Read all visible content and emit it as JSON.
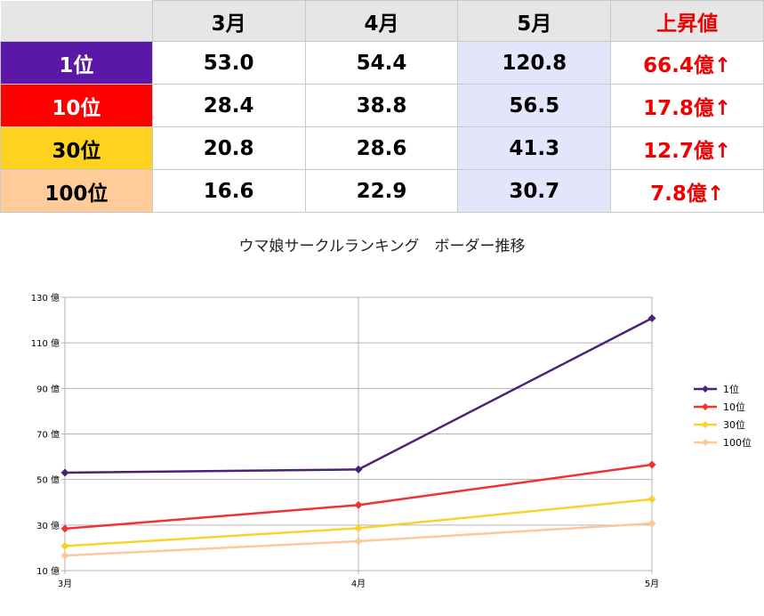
{
  "table": {
    "headers": [
      "3月",
      "4月",
      "5月",
      "上昇値"
    ],
    "rows": [
      {
        "label": "1位",
        "color": "#5a17a8",
        "text_color": "#ffffff",
        "values": [
          "53.0",
          "54.4",
          "120.8"
        ],
        "rise": "66.4億↑"
      },
      {
        "label": "10位",
        "color": "#ff0000",
        "text_color": "#ffffff",
        "values": [
          "28.4",
          "38.8",
          "56.5"
        ],
        "rise": "17.8億↑"
      },
      {
        "label": "30位",
        "color": "#ffd21f",
        "text_color": "#000000",
        "values": [
          "20.8",
          "28.6",
          "41.3"
        ],
        "rise": "12.7億↑"
      },
      {
        "label": "100位",
        "color": "#ffcc99",
        "text_color": "#000000",
        "values": [
          "16.6",
          "22.9",
          "30.7"
        ],
        "rise": "7.8億↑"
      }
    ]
  },
  "chart_data": {
    "type": "line",
    "title": "ウマ娘サークルランキング　ボーダー推移",
    "categories": [
      "3月",
      "4月",
      "5月"
    ],
    "y_ticks": [
      10,
      30,
      50,
      70,
      90,
      110,
      130
    ],
    "y_tick_labels": [
      "10 億",
      "30 億",
      "50 億",
      "70 億",
      "90 億",
      "110 億",
      "130 億"
    ],
    "ylim": [
      10,
      130
    ],
    "grid": true,
    "legend_position": "right",
    "series": [
      {
        "name": "1位",
        "color": "#4b2375",
        "values": [
          53.0,
          54.4,
          120.8
        ]
      },
      {
        "name": "10位",
        "color": "#ee3333",
        "values": [
          28.4,
          38.8,
          56.5
        ]
      },
      {
        "name": "30位",
        "color": "#f7d22a",
        "values": [
          20.8,
          28.6,
          41.3
        ]
      },
      {
        "name": "100位",
        "color": "#fac89c",
        "values": [
          16.6,
          22.9,
          30.7
        ]
      }
    ]
  }
}
